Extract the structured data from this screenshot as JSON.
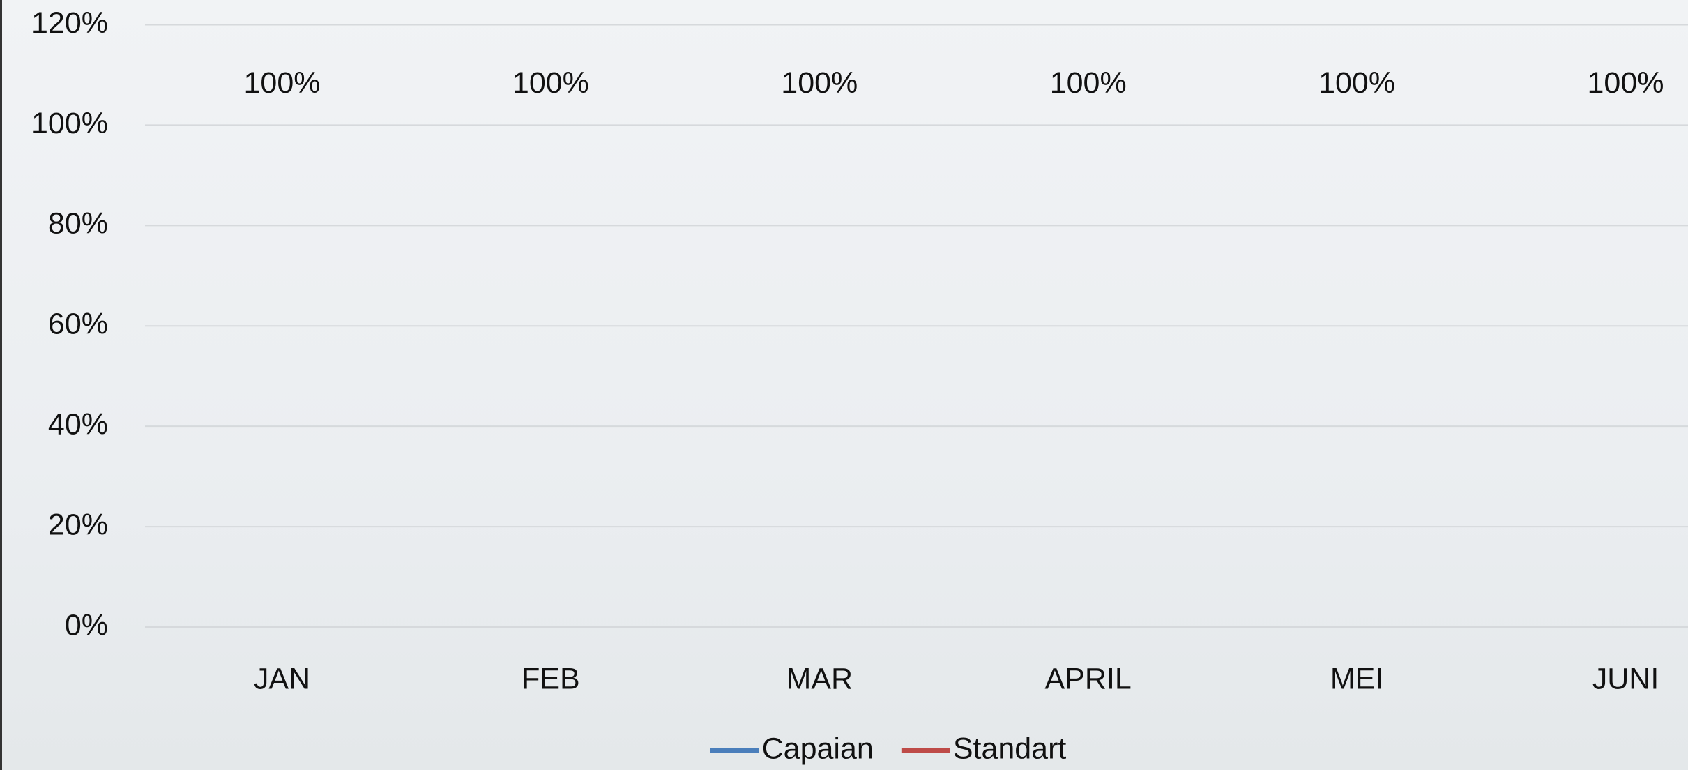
{
  "chart_data": {
    "type": "line",
    "categories": [
      "JAN",
      "FEB",
      "MAR",
      "APRIL",
      "MEI",
      "JUNI"
    ],
    "series": [
      {
        "name": "Capaian",
        "color": "#4a7ebb",
        "values": [
          100,
          100,
          100,
          100,
          100,
          100
        ],
        "value_labels": [
          "100%",
          "100%",
          "100%",
          "100%",
          "100%",
          "100%"
        ]
      },
      {
        "name": "Standart",
        "color": "#be4b48",
        "values": [
          100,
          100,
          100,
          100,
          100,
          100
        ]
      }
    ],
    "ylim": [
      0,
      120
    ],
    "yticks": [
      {
        "value": 0,
        "label": "0%"
      },
      {
        "value": 20,
        "label": "20%"
      },
      {
        "value": 40,
        "label": "40%"
      },
      {
        "value": 60,
        "label": "60%"
      },
      {
        "value": 80,
        "label": "80%"
      },
      {
        "value": 100,
        "label": "100%"
      },
      {
        "value": 120,
        "label": "120%"
      }
    ],
    "grid": true,
    "legend": "bottom"
  }
}
